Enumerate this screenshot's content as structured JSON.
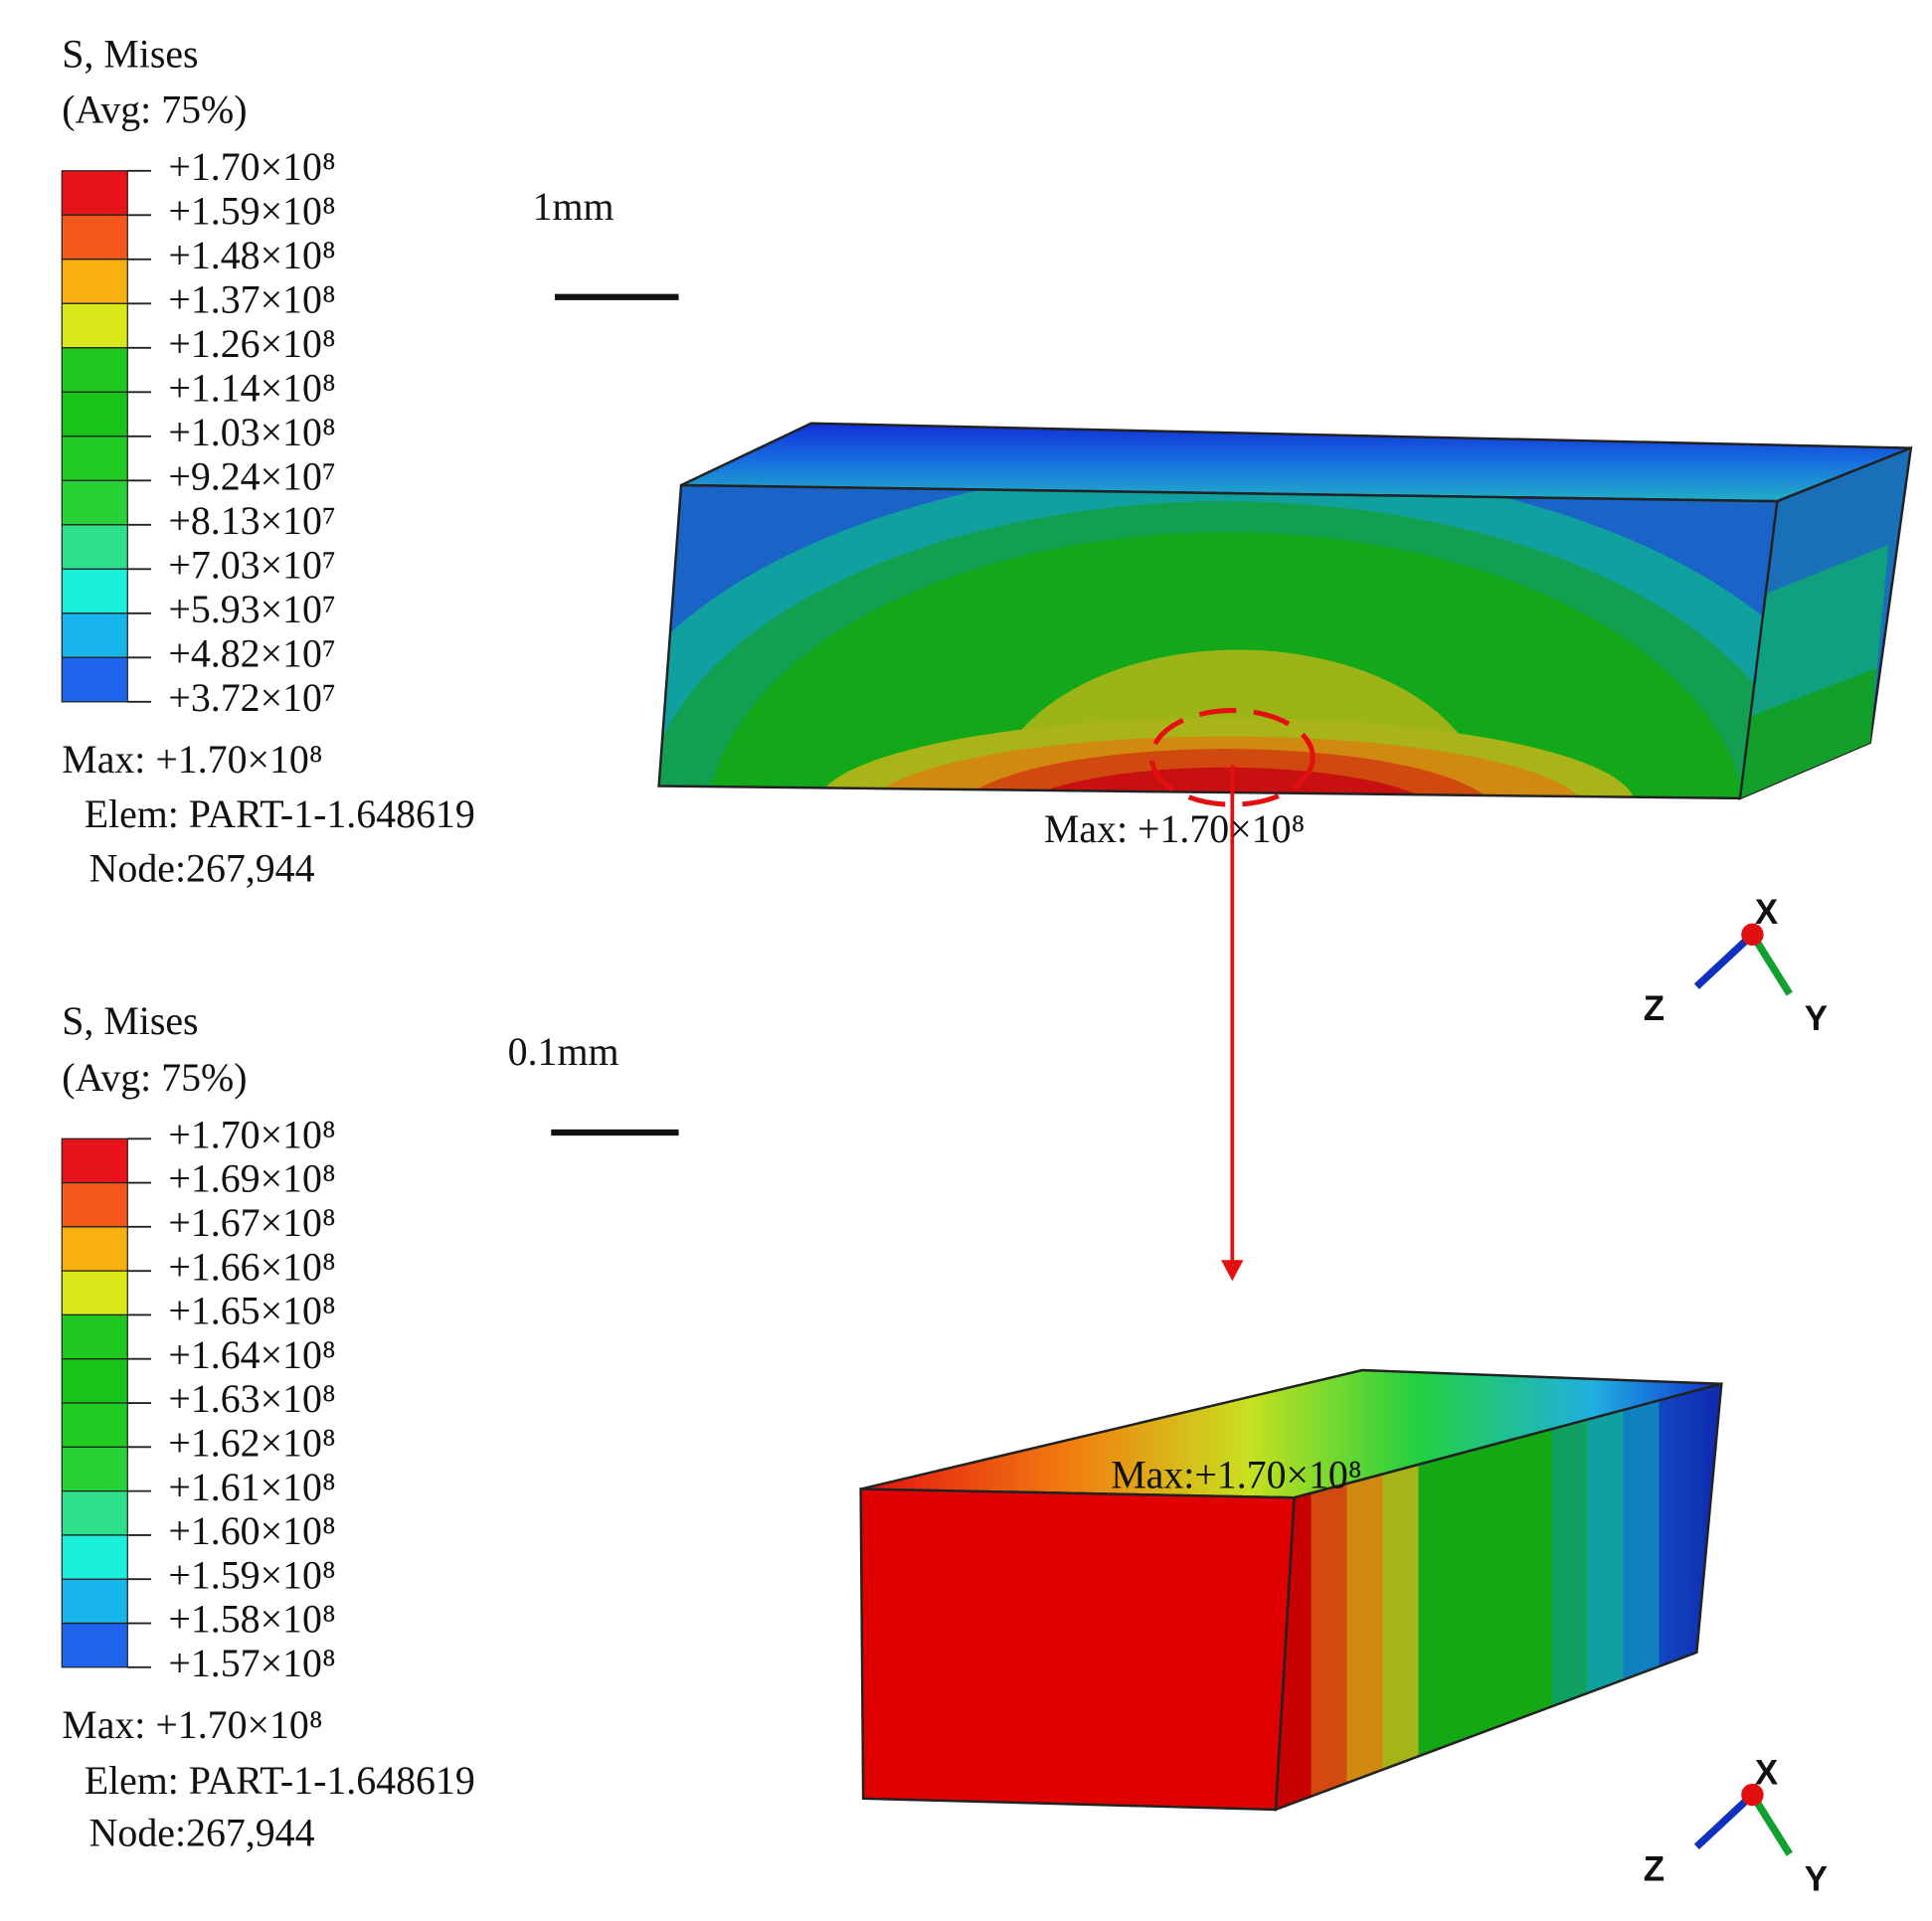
{
  "panels": [
    {
      "title": "S, Mises",
      "subtitle": "(Avg: 75%)",
      "legend_labels": [
        "+1.70×10⁸",
        "+1.59×10⁸",
        "+1.48×10⁸",
        "+1.37×10⁸",
        "+1.26×10⁸",
        "+1.14×10⁸",
        "+1.03×10⁸",
        "+9.24×10⁷",
        "+8.13×10⁷",
        "+7.03×10⁷",
        "+5.93×10⁷",
        "+4.82×10⁷",
        "+3.72×10⁷"
      ],
      "max": "Max: +1.70×10⁸",
      "elem": "Elem: PART-1-1.648619",
      "node": "Node:267,944",
      "scale_label": "1mm",
      "max_annotation": "Max: +1.70×10⁸"
    },
    {
      "title": "S, Mises",
      "subtitle": "(Avg: 75%)",
      "legend_labels": [
        "+1.70×10⁸",
        "+1.69×10⁸",
        "+1.67×10⁸",
        "+1.66×10⁸",
        "+1.65×10⁸",
        "+1.64×10⁸",
        "+1.63×10⁸",
        "+1.62×10⁸",
        "+1.61×10⁸",
        "+1.60×10⁸",
        "+1.59×10⁸",
        "+1.58×10⁸",
        "+1.57×10⁸"
      ],
      "max": "Max: +1.70×10⁸",
      "elem": "Elem: PART-1-1.648619",
      "node": "Node:267,944",
      "scale_label": "0.1mm",
      "max_annotation": "Max:+1.70×10⁸"
    }
  ],
  "legend_colors": [
    "#e8141a",
    "#f4571a",
    "#f8b00e",
    "#d9e818",
    "#1ec81e",
    "#18c418",
    "#20cc22",
    "#28d236",
    "#2ee08a",
    "#1cf0dc",
    "#18b4ec",
    "#1e64ec",
    "#1414e0"
  ],
  "triad": {
    "x": "X",
    "y": "Y",
    "z": "Z"
  }
}
